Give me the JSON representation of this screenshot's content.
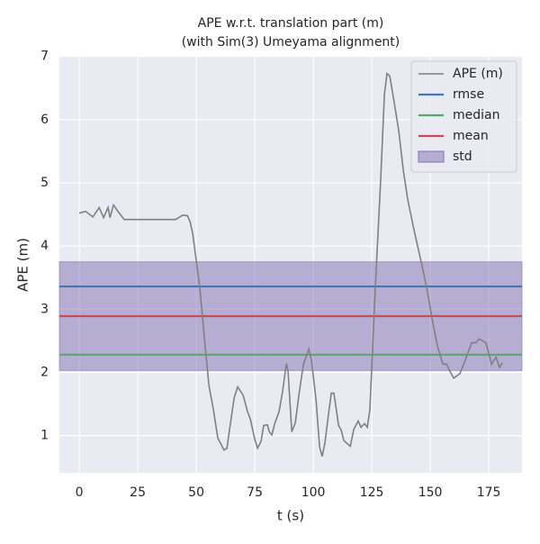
{
  "chart_data": {
    "type": "line",
    "title": "APE w.r.t. translation part (m)",
    "subtitle": "(with Sim(3) Umeyama alignment)",
    "x_label": "t (s)",
    "y_label": "APE (m)",
    "xlim": [
      -8.5,
      189.2
    ],
    "ylim": [
      0.41,
      7.01
    ],
    "xticks": [
      0,
      25,
      50,
      75,
      100,
      125,
      150,
      175
    ],
    "yticks": [
      1,
      2,
      3,
      4,
      5,
      6,
      7
    ],
    "grid": true,
    "legend": "upper right",
    "series": [
      {
        "name": "APE (m)",
        "color": "#808080",
        "x": [
          0,
          2.7,
          5.8,
          8.5,
          10.4,
          12.3,
          13.1,
          14.6,
          16.5,
          19.2,
          23.8,
          41.2,
          44.2,
          46.2,
          47.3,
          48.5,
          51.5,
          53.8,
          55.4,
          57.3,
          59.2,
          61.9,
          63.1,
          64.2,
          66.2,
          67.7,
          70.0,
          71.9,
          73.1,
          75.0,
          76.2,
          77.7,
          78.8,
          80.4,
          81.2,
          82.3,
          83.5,
          85.4,
          86.9,
          88.5,
          89.2,
          90.8,
          92.3,
          93.8,
          95.8,
          98.1,
          99.2,
          101.2,
          102.7,
          103.8,
          105.0,
          106.5,
          107.7,
          108.8,
          109.6,
          110.8,
          111.9,
          113.1,
          115.8,
          117.3,
          119.2,
          120.4,
          121.9,
          123.1,
          124.2,
          126.5,
          128.8,
          130.4,
          131.5,
          132.7,
          134.2,
          136.5,
          138.5,
          140.4,
          143.1,
          146.9,
          148.8,
          150.8,
          153.1,
          155.4,
          156.9,
          158.5,
          160.0,
          162.7,
          165.0,
          167.7,
          169.6,
          170.8,
          173.8,
          176.2,
          178.1,
          179.6,
          180.8
        ],
        "values": [
          4.52,
          4.55,
          4.46,
          4.61,
          4.45,
          4.61,
          4.45,
          4.65,
          4.55,
          4.42,
          4.42,
          4.42,
          4.49,
          4.48,
          4.39,
          4.19,
          3.34,
          2.41,
          1.8,
          1.41,
          0.96,
          0.77,
          0.8,
          1.09,
          1.6,
          1.77,
          1.64,
          1.38,
          1.26,
          0.94,
          0.8,
          0.91,
          1.16,
          1.17,
          1.06,
          1.01,
          1.19,
          1.38,
          1.7,
          2.14,
          2.03,
          1.06,
          1.2,
          1.63,
          2.13,
          2.37,
          2.2,
          1.56,
          0.82,
          0.67,
          0.89,
          1.34,
          1.67,
          1.67,
          1.48,
          1.16,
          1.09,
          0.92,
          0.83,
          1.1,
          1.23,
          1.13,
          1.19,
          1.13,
          1.41,
          3.34,
          5.05,
          6.4,
          6.73,
          6.69,
          6.36,
          5.83,
          5.19,
          4.73,
          4.25,
          3.62,
          3.27,
          2.84,
          2.41,
          2.13,
          2.13,
          2.01,
          1.91,
          1.98,
          2.2,
          2.47,
          2.47,
          2.53,
          2.47,
          2.13,
          2.24,
          2.08,
          2.15
        ]
      }
    ],
    "stats": [
      {
        "name": "rmse",
        "color": "#4c72b0",
        "value": 3.36
      },
      {
        "name": "median",
        "color": "#55a868",
        "value": 2.28
      },
      {
        "name": "mean",
        "color": "#c44e52",
        "value": 2.89
      }
    ],
    "std": {
      "name": "std",
      "color": "#8172b2",
      "value": 0.86
    }
  }
}
